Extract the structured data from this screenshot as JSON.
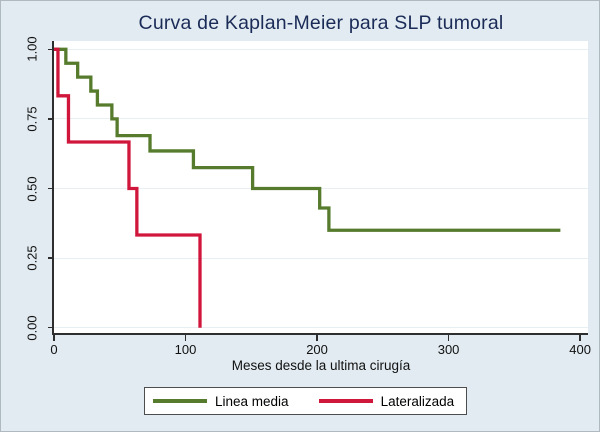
{
  "chart_data": {
    "type": "line",
    "subtype": "kaplan-meier-step",
    "title": "Curva de Kaplan-Meier para SLP tumoral",
    "xlabel": "Meses desde la ultima cirugía",
    "ylabel": "",
    "xlim": [
      0,
      406
    ],
    "ylim": [
      0,
      1
    ],
    "x_ticks": [
      0,
      100,
      200,
      300,
      400
    ],
    "y_ticks": [
      "0.00",
      "0.25",
      "0.50",
      "0.75",
      "1.00"
    ],
    "grid": true,
    "legend_position": "bottom-center",
    "series": [
      {
        "name": "Linea media",
        "color": "#567b2c",
        "points": [
          [
            0,
            1.0
          ],
          [
            9,
            0.95
          ],
          [
            18,
            0.9
          ],
          [
            28,
            0.85
          ],
          [
            33,
            0.8
          ],
          [
            44,
            0.75
          ],
          [
            48,
            0.69
          ],
          [
            73,
            0.635
          ],
          [
            106,
            0.575
          ],
          [
            151,
            0.5
          ],
          [
            202,
            0.43
          ],
          [
            209,
            0.35
          ],
          [
            385,
            0.35
          ]
        ]
      },
      {
        "name": "Lateralizada",
        "color": "#d1163c",
        "points": [
          [
            0,
            1.0
          ],
          [
            3,
            0.833
          ],
          [
            11,
            0.667
          ],
          [
            57,
            0.5
          ],
          [
            63,
            0.333
          ],
          [
            111,
            0.0
          ]
        ]
      }
    ]
  },
  "colors": {
    "background": "#e1ebf1",
    "plot_bg": "#ffffff",
    "grid": "#e7eff3",
    "axis": "#2e2e2e",
    "title": "#1b2b57",
    "text": "#111111",
    "legend_border": "#4d4d4d"
  }
}
